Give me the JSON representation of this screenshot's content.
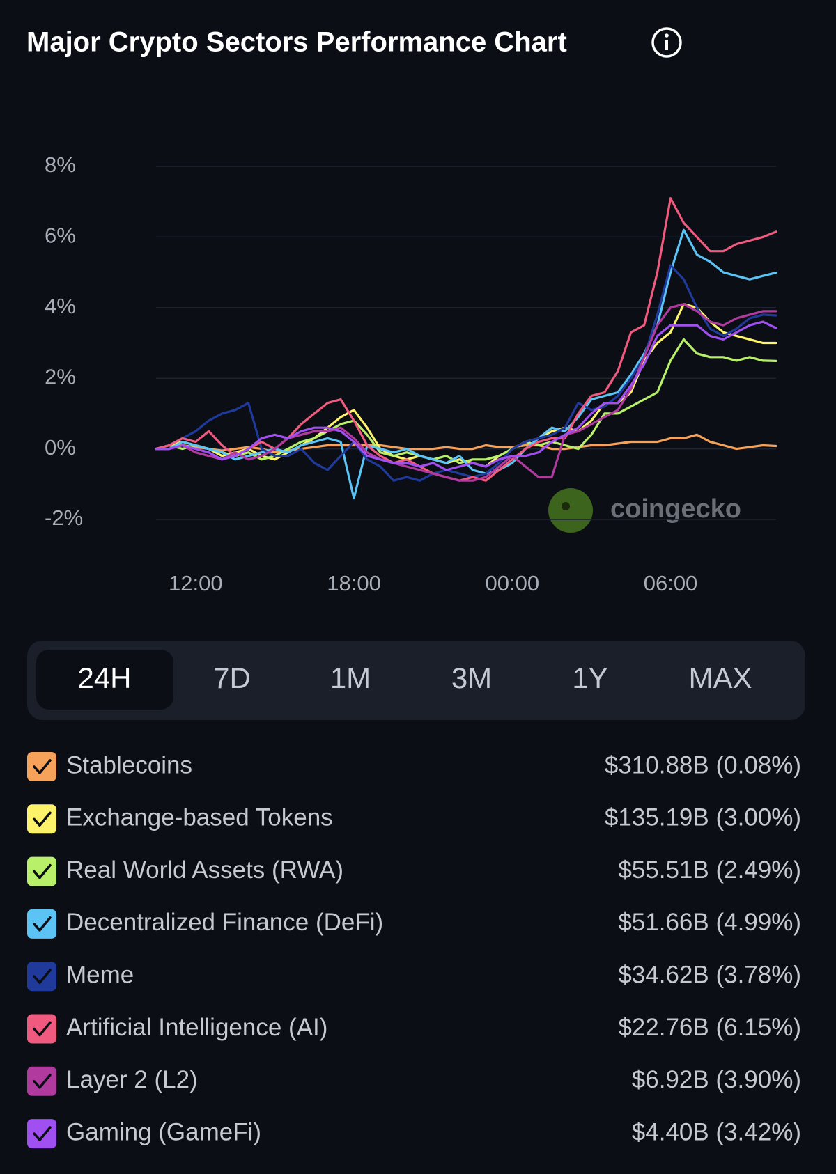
{
  "chart_data": {
    "type": "line",
    "title": "Major Crypto Sectors Performance Chart",
    "watermark": "coingecko",
    "x": [
      "10:30",
      "11:00",
      "11:30",
      "12:00",
      "12:30",
      "13:00",
      "13:30",
      "14:00",
      "14:30",
      "15:00",
      "15:30",
      "16:00",
      "16:30",
      "17:00",
      "17:30",
      "18:00",
      "18:30",
      "19:00",
      "19:30",
      "20:00",
      "20:30",
      "21:00",
      "21:30",
      "22:00",
      "22:30",
      "23:00",
      "23:30",
      "00:00",
      "00:30",
      "01:00",
      "01:30",
      "02:00",
      "02:30",
      "03:00",
      "03:30",
      "04:00",
      "04:30",
      "05:00",
      "05:30",
      "06:00",
      "06:30",
      "07:00",
      "07:30",
      "08:00",
      "08:30",
      "09:00",
      "09:30",
      "10:00"
    ],
    "xticks": [
      "12:00",
      "18:00",
      "00:00",
      "06:00"
    ],
    "ylim": [
      -2,
      8
    ],
    "yticks": [
      {
        "value": -2,
        "label": "-2%"
      },
      {
        "value": 0,
        "label": "0%"
      },
      {
        "value": 2,
        "label": "2%"
      },
      {
        "value": 4,
        "label": "4%"
      },
      {
        "value": 6,
        "label": "6%"
      },
      {
        "value": 8,
        "label": "8%"
      }
    ],
    "grid": true,
    "series": [
      {
        "name": "Stablecoins",
        "color": "#f7a25a",
        "summary": "$310.88B (0.08%)",
        "values": [
          0,
          0.1,
          0.1,
          0.05,
          0,
          -0.05,
          0,
          0.05,
          0,
          -0.1,
          -0.05,
          0,
          0.05,
          0.1,
          0.1,
          0.1,
          0.1,
          0.1,
          0.05,
          0,
          0,
          0,
          0.05,
          0,
          0,
          0.1,
          0.05,
          0.05,
          0.1,
          0.1,
          0,
          0,
          0.05,
          0.1,
          0.1,
          0.15,
          0.2,
          0.2,
          0.2,
          0.3,
          0.3,
          0.4,
          0.2,
          0.1,
          0,
          0.05,
          0.1,
          0.08
        ]
      },
      {
        "name": "Exchange-based Tokens",
        "color": "#fcf36b",
        "summary": "$135.19B (3.00%)",
        "values": [
          0,
          0.1,
          0.2,
          0.1,
          0,
          -0.2,
          -0.1,
          0,
          -0.2,
          -0.3,
          -0.1,
          0.1,
          0.3,
          0.6,
          0.9,
          1.1,
          0.6,
          0,
          -0.2,
          -0.3,
          -0.2,
          -0.3,
          -0.4,
          -0.3,
          -0.4,
          -0.5,
          -0.2,
          0,
          0.2,
          0.3,
          0.5,
          0.6,
          0.5,
          0.8,
          1.3,
          1.3,
          1.6,
          2.5,
          3.0,
          3.3,
          4.1,
          4.0,
          3.6,
          3.3,
          3.2,
          3.1,
          3.0,
          3.0
        ]
      },
      {
        "name": "Real World Assets (RWA)",
        "color": "#b8f06a",
        "summary": "$55.51B (2.49%)",
        "values": [
          0,
          0.1,
          0,
          0.1,
          0,
          -0.1,
          -0.2,
          -0.1,
          -0.3,
          -0.2,
          0,
          0.2,
          0.3,
          0.5,
          0.7,
          0.8,
          0.4,
          -0.1,
          -0.2,
          -0.1,
          -0.2,
          -0.3,
          -0.2,
          -0.4,
          -0.3,
          -0.3,
          -0.2,
          0,
          0.2,
          0.1,
          0.2,
          0.1,
          0,
          0.4,
          1.0,
          1.0,
          1.2,
          1.4,
          1.6,
          2.5,
          3.1,
          2.7,
          2.6,
          2.6,
          2.5,
          2.6,
          2.5,
          2.49
        ]
      },
      {
        "name": "Decentralized Finance (DeFi)",
        "color": "#5cc3f5",
        "summary": "$51.66B (4.99%)",
        "values": [
          0,
          0,
          0.2,
          0.1,
          0,
          -0.1,
          -0.3,
          -0.2,
          -0.1,
          0,
          -0.1,
          0.1,
          0.2,
          0.3,
          0.2,
          -1.4,
          0.1,
          0,
          -0.1,
          0,
          -0.2,
          -0.3,
          -0.4,
          -0.2,
          -0.6,
          -0.7,
          -0.6,
          -0.4,
          0,
          0.3,
          0.6,
          0.5,
          0.9,
          1.4,
          1.5,
          1.6,
          2.1,
          2.7,
          3.5,
          5.0,
          6.2,
          5.5,
          5.3,
          5.0,
          4.9,
          4.8,
          4.9,
          4.99
        ]
      },
      {
        "name": "Meme",
        "color": "#1f3a9a",
        "summary": "$34.62B (3.78%)",
        "values": [
          0,
          0.1,
          0.3,
          0.5,
          0.8,
          1.0,
          1.1,
          1.3,
          0,
          -0.2,
          -0.2,
          0,
          -0.4,
          -0.6,
          -0.2,
          0.2,
          -0.3,
          -0.5,
          -0.9,
          -0.8,
          -0.9,
          -0.7,
          -0.6,
          -0.7,
          -0.8,
          -0.7,
          -0.4,
          0,
          0.2,
          0.3,
          0.4,
          0.6,
          1.3,
          1.1,
          1.2,
          1.5,
          2.0,
          2.6,
          3.8,
          5.2,
          4.8,
          4.0,
          3.4,
          3.2,
          3.4,
          3.7,
          3.8,
          3.78
        ]
      },
      {
        "name": "Artificial Intelligence (AI)",
        "color": "#f05a7e",
        "summary": "$22.76B (6.15%)",
        "values": [
          0,
          0.1,
          0.3,
          0.2,
          0.5,
          0.1,
          -0.2,
          0,
          0.2,
          0,
          0.3,
          0.7,
          1.0,
          1.3,
          1.4,
          0.8,
          0.1,
          -0.2,
          -0.4,
          -0.3,
          -0.5,
          -0.7,
          -0.8,
          -0.9,
          -0.8,
          -0.9,
          -0.6,
          -0.3,
          0,
          0.2,
          0.3,
          0.3,
          1.0,
          1.5,
          1.6,
          2.2,
          3.3,
          3.5,
          5.0,
          7.1,
          6.4,
          6.0,
          5.6,
          5.6,
          5.8,
          5.9,
          6.0,
          6.15
        ]
      },
      {
        "name": "Layer 2 (L2)",
        "color": "#b03a9e",
        "summary": "$6.92B (3.90%)",
        "values": [
          0,
          0,
          0.1,
          -0.1,
          -0.2,
          -0.3,
          -0.1,
          -0.3,
          -0.2,
          0,
          0.3,
          0.4,
          0.5,
          0.5,
          0.6,
          0.3,
          -0.1,
          -0.3,
          -0.4,
          -0.5,
          -0.6,
          -0.7,
          -0.8,
          -0.9,
          -0.9,
          -0.8,
          -0.5,
          -0.2,
          -0.5,
          -0.8,
          -0.8,
          0.4,
          0.5,
          0.7,
          0.9,
          1.1,
          1.7,
          2.6,
          3.5,
          4.0,
          4.1,
          3.9,
          3.6,
          3.5,
          3.7,
          3.8,
          3.9,
          3.9
        ]
      },
      {
        "name": "Gaming (GameFi)",
        "color": "#a04ff0",
        "summary": "$4.40B (3.42%)",
        "values": [
          0,
          0,
          0.1,
          0,
          -0.1,
          -0.3,
          -0.2,
          0,
          0.3,
          0.4,
          0.3,
          0.5,
          0.6,
          0.6,
          0.5,
          0.2,
          -0.2,
          -0.3,
          -0.4,
          -0.4,
          -0.5,
          -0.4,
          -0.6,
          -0.5,
          -0.4,
          -0.5,
          -0.3,
          -0.2,
          -0.2,
          -0.1,
          0.2,
          0.4,
          0.6,
          1.0,
          1.3,
          1.3,
          1.8,
          2.4,
          3.2,
          3.5,
          3.5,
          3.5,
          3.2,
          3.1,
          3.3,
          3.5,
          3.6,
          3.42
        ]
      }
    ]
  },
  "tabs": {
    "items": [
      "24H",
      "7D",
      "1M",
      "3M",
      "1Y",
      "MAX"
    ],
    "active": "24H"
  }
}
